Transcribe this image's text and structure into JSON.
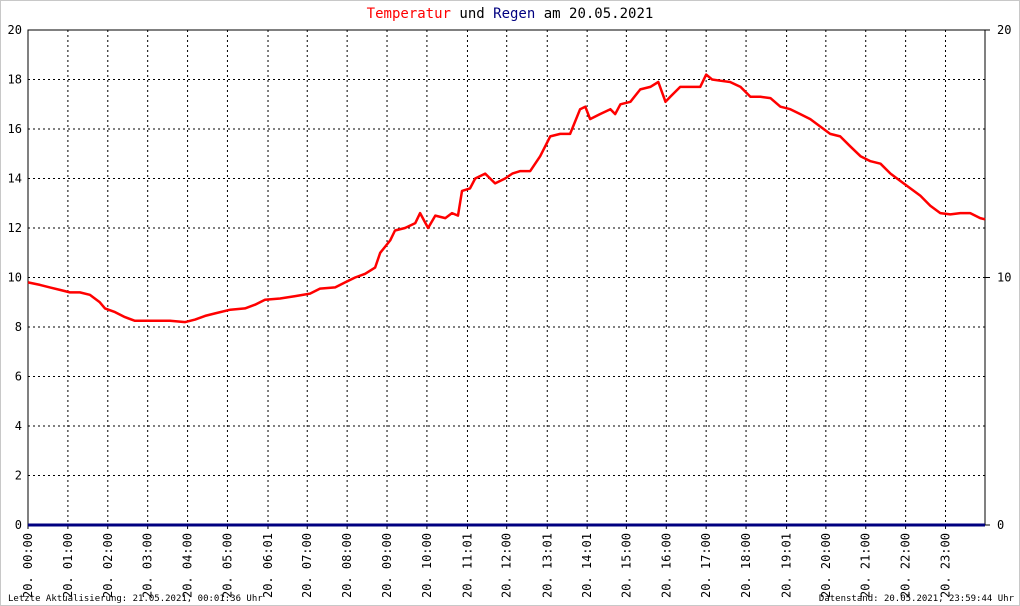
{
  "chart_data": {
    "type": "line",
    "title_words": [
      "und",
      "am 20.05.2021"
    ],
    "xlim": [
      0,
      23.99
    ],
    "xticks": [
      {
        "value": 0,
        "label": "20. 00:00"
      },
      {
        "value": 1,
        "label": "20. 01:00"
      },
      {
        "value": 2,
        "label": "20. 02:00"
      },
      {
        "value": 3,
        "label": "20. 03:00"
      },
      {
        "value": 4,
        "label": "20. 04:00"
      },
      {
        "value": 5,
        "label": "20. 05:00"
      },
      {
        "value": 6.0167,
        "label": "20. 06:01"
      },
      {
        "value": 7,
        "label": "20. 07:00"
      },
      {
        "value": 8,
        "label": "20. 08:00"
      },
      {
        "value": 9,
        "label": "20. 09:00"
      },
      {
        "value": 10,
        "label": "20. 10:00"
      },
      {
        "value": 11.0167,
        "label": "20. 11:01"
      },
      {
        "value": 12,
        "label": "20. 12:00"
      },
      {
        "value": 13.0167,
        "label": "20. 13:01"
      },
      {
        "value": 14.0167,
        "label": "20. 14:01"
      },
      {
        "value": 15,
        "label": "20. 15:00"
      },
      {
        "value": 16,
        "label": "20. 16:00"
      },
      {
        "value": 17,
        "label": "20. 17:00"
      },
      {
        "value": 18,
        "label": "20. 18:00"
      },
      {
        "value": 19.0167,
        "label": "20. 19:01"
      },
      {
        "value": 20,
        "label": "20. 20:00"
      },
      {
        "value": 21,
        "label": "20. 21:00"
      },
      {
        "value": 22,
        "label": "20. 22:00"
      },
      {
        "value": 23,
        "label": "20. 23:00"
      }
    ],
    "ylim": [
      0,
      20
    ],
    "yticks": [
      0,
      2,
      4,
      6,
      8,
      10,
      12,
      14,
      16,
      18,
      20
    ],
    "y2lim": [
      0,
      20
    ],
    "y2ticks": [
      0,
      10,
      20
    ],
    "grid": true,
    "series": [
      {
        "name": "Temperatur",
        "color": "#ff0000",
        "x": [
          0,
          0.3,
          0.55,
          0.8,
          1.05,
          1.3,
          1.55,
          1.8,
          1.93,
          2.18,
          2.43,
          2.68,
          3.06,
          3.56,
          3.94,
          4.19,
          4.44,
          4.69,
          5.07,
          5.44,
          5.69,
          5.94,
          6.32,
          6.7,
          7.07,
          7.32,
          7.7,
          7.95,
          8.2,
          8.45,
          8.7,
          8.83,
          9.08,
          9.2,
          9.45,
          9.71,
          9.83,
          10.03,
          10.21,
          10.46,
          10.63,
          10.78,
          10.88,
          11.08,
          11.21,
          11.46,
          11.71,
          11.96,
          12.14,
          12.34,
          12.59,
          12.84,
          13.09,
          13.34,
          13.59,
          13.84,
          13.97,
          14.09,
          14.34,
          14.6,
          14.72,
          14.85,
          15.1,
          15.35,
          15.6,
          15.8,
          15.98,
          16.1,
          16.35,
          16.6,
          16.85,
          17,
          17.15,
          17.35,
          17.6,
          17.86,
          18.11,
          18.36,
          18.61,
          18.86,
          19.11,
          19.36,
          19.61,
          19.86,
          20.11,
          20.36,
          20.61,
          20.87,
          21.12,
          21.37,
          21.62,
          21.87,
          22.12,
          22.37,
          22.62,
          22.87,
          23.12,
          23.37,
          23.62,
          23.87,
          23.99
        ],
        "values": [
          9.8,
          9.7,
          9.6,
          9.5,
          9.4,
          9.4,
          9.3,
          9.0,
          8.75,
          8.6,
          8.4,
          8.25,
          8.25,
          8.25,
          8.2,
          8.3,
          8.45,
          8.55,
          8.7,
          8.75,
          8.9,
          9.1,
          9.15,
          9.25,
          9.35,
          9.55,
          9.6,
          9.8,
          10.0,
          10.15,
          10.4,
          11.0,
          11.5,
          11.9,
          12.0,
          12.2,
          12.6,
          12.0,
          12.5,
          12.4,
          12.6,
          12.5,
          13.5,
          13.6,
          14.0,
          14.2,
          13.8,
          14.0,
          14.2,
          14.3,
          14.3,
          14.9,
          15.7,
          15.8,
          15.8,
          16.8,
          16.9,
          16.4,
          16.6,
          16.8,
          16.6,
          17.0,
          17.1,
          17.6,
          17.7,
          17.9,
          17.1,
          17.3,
          17.7,
          17.7,
          17.7,
          18.2,
          18.0,
          17.95,
          17.9,
          17.7,
          17.3,
          17.3,
          17.25,
          16.9,
          16.8,
          16.6,
          16.4,
          16.1,
          15.8,
          15.7,
          15.3,
          14.9,
          14.7,
          14.6,
          14.2,
          13.9,
          13.6,
          13.3,
          12.9,
          12.6,
          12.55,
          12.6,
          12.6,
          12.4,
          12.35
        ]
      },
      {
        "name": "Regen",
        "color": "#000080",
        "axis": "y2",
        "x": [
          0,
          23.99
        ],
        "values": [
          0,
          0
        ]
      }
    ],
    "footer_left": "Letzte Aktualisierung: 21.05.2021, 00:01:36 Uhr",
    "footer_right": "Datenstand: 20.05.2021, 23:59:44 Uhr"
  }
}
